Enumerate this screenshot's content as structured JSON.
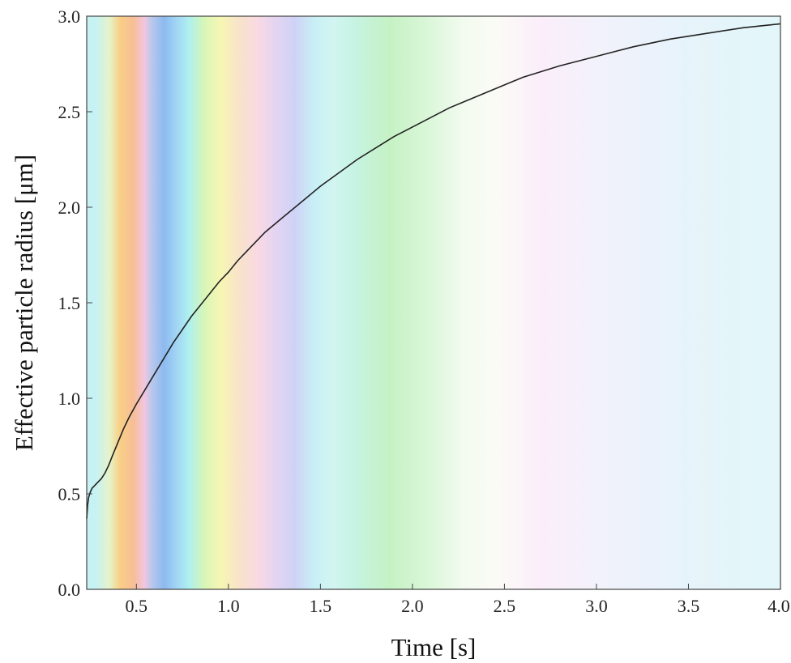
{
  "chart_data": {
    "type": "line",
    "title": "",
    "xlabel": "Time [s]",
    "ylabel": "Effective particle radius [μm]",
    "xlim": [
      0.23,
      4.0
    ],
    "ylim": [
      0.0,
      3.0
    ],
    "xticks": [
      0.5,
      1.0,
      1.5,
      2.0,
      2.5,
      3.0,
      3.5,
      4.0
    ],
    "xtick_labels": [
      "0.5",
      "1.0",
      "1.5",
      "2.0",
      "2.5",
      "3.0",
      "3.5",
      "4.0"
    ],
    "yticks": [
      0.0,
      0.5,
      1.0,
      1.5,
      2.0,
      2.5,
      3.0
    ],
    "ytick_labels": [
      "0.0",
      "0.5",
      "1.0",
      "1.5",
      "2.0",
      "2.5",
      "3.0"
    ],
    "grid": false,
    "legend": "none",
    "line_color": "#222222",
    "background_bands": [
      {
        "x0": 0.23,
        "x1": 0.33,
        "color": "#c7f2f4"
      },
      {
        "x0": 0.33,
        "x1": 0.38,
        "color": "#e6f3c8"
      },
      {
        "x0": 0.38,
        "x1": 0.44,
        "color": "#f9cf86"
      },
      {
        "x0": 0.44,
        "x1": 0.53,
        "color": "#f7be96"
      },
      {
        "x0": 0.53,
        "x1": 0.56,
        "color": "#f1c6e1"
      },
      {
        "x0": 0.56,
        "x1": 0.6,
        "color": "#bcc8ec"
      },
      {
        "x0": 0.6,
        "x1": 0.7,
        "color": "#8dbaf0"
      },
      {
        "x0": 0.7,
        "x1": 0.75,
        "color": "#a3d8f4"
      },
      {
        "x0": 0.75,
        "x1": 0.82,
        "color": "#aef0ef"
      },
      {
        "x0": 0.82,
        "x1": 0.92,
        "color": "#d8f6b7"
      },
      {
        "x0": 0.92,
        "x1": 1.0,
        "color": "#f7f6b3"
      },
      {
        "x0": 1.0,
        "x1": 1.1,
        "color": "#f8e4c8"
      },
      {
        "x0": 1.1,
        "x1": 1.22,
        "color": "#f9d9e3"
      },
      {
        "x0": 1.22,
        "x1": 1.3,
        "color": "#e3d4f2"
      },
      {
        "x0": 1.3,
        "x1": 1.42,
        "color": "#cfd2f6"
      },
      {
        "x0": 1.42,
        "x1": 1.52,
        "color": "#c8f0f6"
      },
      {
        "x0": 1.52,
        "x1": 1.62,
        "color": "#d2f5f1"
      },
      {
        "x0": 1.62,
        "x1": 1.75,
        "color": "#c6f3e3"
      },
      {
        "x0": 1.75,
        "x1": 2.0,
        "color": "#c5f2c4"
      },
      {
        "x0": 2.0,
        "x1": 2.2,
        "color": "#dcf7da"
      },
      {
        "x0": 2.2,
        "x1": 2.35,
        "color": "#f2fbef"
      },
      {
        "x0": 2.35,
        "x1": 2.55,
        "color": "#fbfbf6"
      },
      {
        "x0": 2.55,
        "x1": 2.85,
        "color": "#fbeefa"
      },
      {
        "x0": 2.85,
        "x1": 3.25,
        "color": "#f1f2fb"
      },
      {
        "x0": 3.25,
        "x1": 3.7,
        "color": "#e7f3fb"
      },
      {
        "x0": 3.7,
        "x1": 4.0,
        "color": "#e3f6f9"
      }
    ],
    "series": [
      {
        "x": [
          0.23,
          0.235,
          0.24,
          0.25,
          0.26,
          0.27,
          0.29,
          0.31,
          0.33,
          0.35,
          0.37,
          0.4,
          0.43,
          0.46,
          0.5,
          0.55,
          0.6,
          0.65,
          0.7,
          0.75,
          0.8,
          0.85,
          0.9,
          0.95,
          1.0,
          1.05,
          1.1,
          1.2,
          1.3,
          1.4,
          1.5,
          1.6,
          1.7,
          1.8,
          1.9,
          2.0,
          2.2,
          2.4,
          2.6,
          2.8,
          3.0,
          3.2,
          3.4,
          3.6,
          3.8,
          4.0
        ],
        "y": [
          0.37,
          0.44,
          0.48,
          0.51,
          0.53,
          0.54,
          0.56,
          0.58,
          0.61,
          0.65,
          0.7,
          0.77,
          0.84,
          0.9,
          0.97,
          1.05,
          1.13,
          1.21,
          1.29,
          1.36,
          1.43,
          1.49,
          1.55,
          1.61,
          1.66,
          1.72,
          1.77,
          1.87,
          1.95,
          2.03,
          2.11,
          2.18,
          2.25,
          2.31,
          2.37,
          2.42,
          2.52,
          2.6,
          2.68,
          2.74,
          2.79,
          2.84,
          2.88,
          2.91,
          2.94,
          2.96
        ]
      }
    ]
  }
}
